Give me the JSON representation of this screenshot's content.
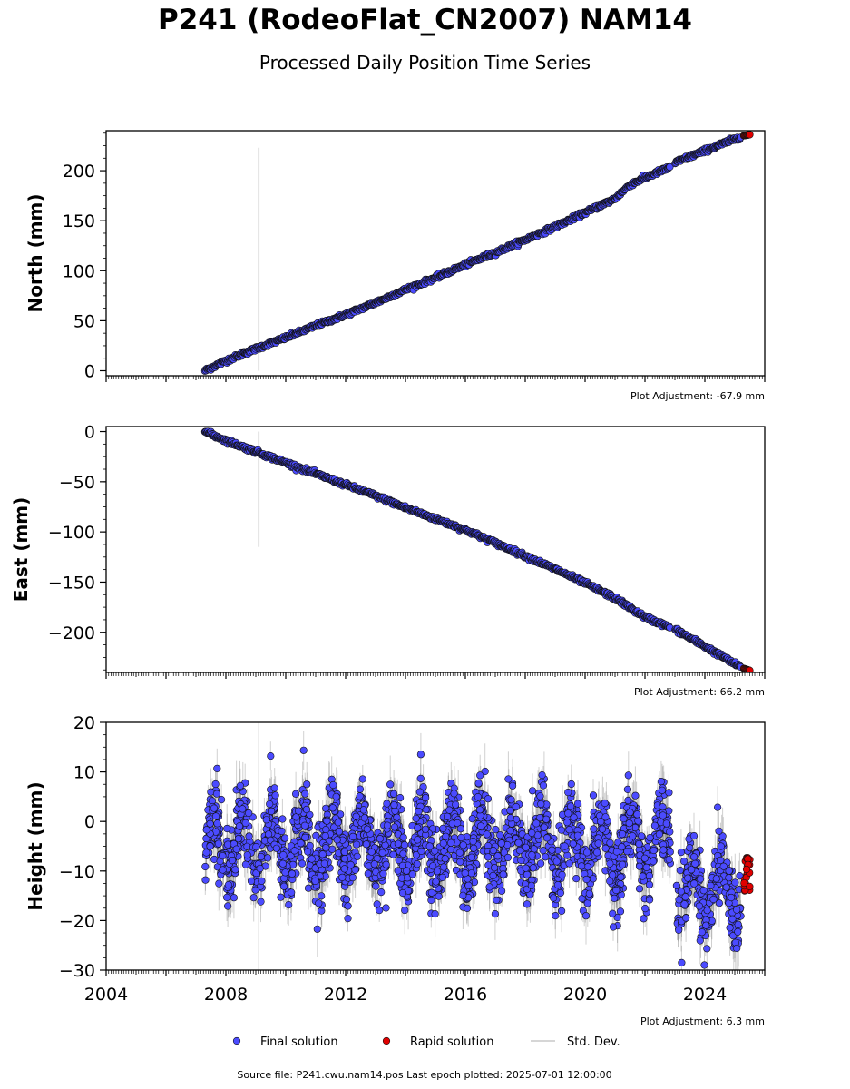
{
  "title": "P241 (RodeoFlat_CN2007) NAM14",
  "subtitle": "Processed Daily Position Time Series",
  "source_note": "Source file: P241.cwu.nam14.pos  Last epoch plotted: 2025-07-01 12:00:00",
  "legend": {
    "final": "Final solution",
    "rapid": "Rapid solution",
    "std": "Std. Dev."
  },
  "colors": {
    "final": "#4b4bff",
    "rapid": "#e00000",
    "std": "#c8c8c8",
    "edge": "#000000"
  },
  "chart_data": [
    {
      "type": "scatter",
      "ylabel": "North (mm)",
      "ylim": [
        -5,
        240
      ],
      "yticks": [
        0,
        50,
        100,
        150,
        200
      ],
      "xlim": [
        2004,
        2026
      ],
      "adjustment": "Plot Adjustment: -67.9 mm",
      "series": [
        {
          "name": "Final solution",
          "x": [
            2007.3,
            2008.0,
            2009.0,
            2010.0,
            2011.0,
            2012.0,
            2013.0,
            2014.0,
            2015.0,
            2016.0,
            2017.0,
            2018.0,
            2019.0,
            2020.0,
            2021.0,
            2021.5,
            2022.0,
            2022.8,
            2023.0,
            2024.0,
            2025.2
          ],
          "y": [
            0,
            10,
            22,
            33,
            45,
            56,
            68,
            81,
            93,
            106,
            118,
            131,
            144,
            158,
            172,
            186,
            193,
            203,
            208,
            220,
            234
          ]
        },
        {
          "name": "Rapid solution",
          "x": [
            2025.3,
            2025.5
          ],
          "y": [
            235,
            236
          ]
        }
      ],
      "std_spike": {
        "x": 2009.1,
        "y": [
          0,
          223
        ]
      }
    },
    {
      "type": "scatter",
      "ylabel": "East (mm)",
      "ylim": [
        -240,
        5
      ],
      "yticks": [
        0,
        -50,
        -100,
        -150,
        -200
      ],
      "ytick_labels": [
        "0",
        "−50",
        "−100",
        "−150",
        "−200"
      ],
      "xlim": [
        2004,
        2026
      ],
      "adjustment": "Plot Adjustment: 66.2 mm",
      "series": [
        {
          "name": "Final solution",
          "x": [
            2007.3,
            2008.0,
            2009.0,
            2010.0,
            2011.0,
            2012.0,
            2013.0,
            2014.0,
            2015.0,
            2016.0,
            2017.0,
            2018.0,
            2019.0,
            2020.0,
            2021.0,
            2022.0,
            2023.0,
            2024.0,
            2025.2
          ],
          "y": [
            0,
            -9,
            -20,
            -31,
            -42,
            -53,
            -64,
            -76,
            -87,
            -98,
            -111,
            -124,
            -137,
            -151,
            -166,
            -185,
            -197,
            -214,
            -235
          ]
        },
        {
          "name": "Rapid solution",
          "x": [
            2025.3,
            2025.5
          ],
          "y": [
            -236,
            -238
          ]
        }
      ],
      "std_spike": {
        "x": 2009.1,
        "y": [
          -115,
          0
        ]
      }
    },
    {
      "type": "scatter",
      "ylabel": "Height (mm)",
      "ylim": [
        -30,
        20
      ],
      "yticks": [
        -30,
        -20,
        -10,
        0,
        10,
        20
      ],
      "ytick_labels": [
        "−30",
        "−20",
        "−10",
        "0",
        "10",
        "20"
      ],
      "xlim": [
        2004,
        2026
      ],
      "xticks": [
        2004,
        2008,
        2012,
        2016,
        2020,
        2024
      ],
      "adjustment": "Plot Adjustment: 6.3 mm",
      "series": [
        {
          "name": "Final solution",
          "x_range": [
            2007.3,
            2025.2
          ],
          "mean": -5,
          "seasonal_amplitude": 6,
          "scatter": 7,
          "mean_after_2023": -14
        },
        {
          "name": "Rapid solution",
          "x_range": [
            2025.3,
            2025.5
          ],
          "y_range": [
            -14,
            -7
          ]
        }
      ]
    }
  ]
}
